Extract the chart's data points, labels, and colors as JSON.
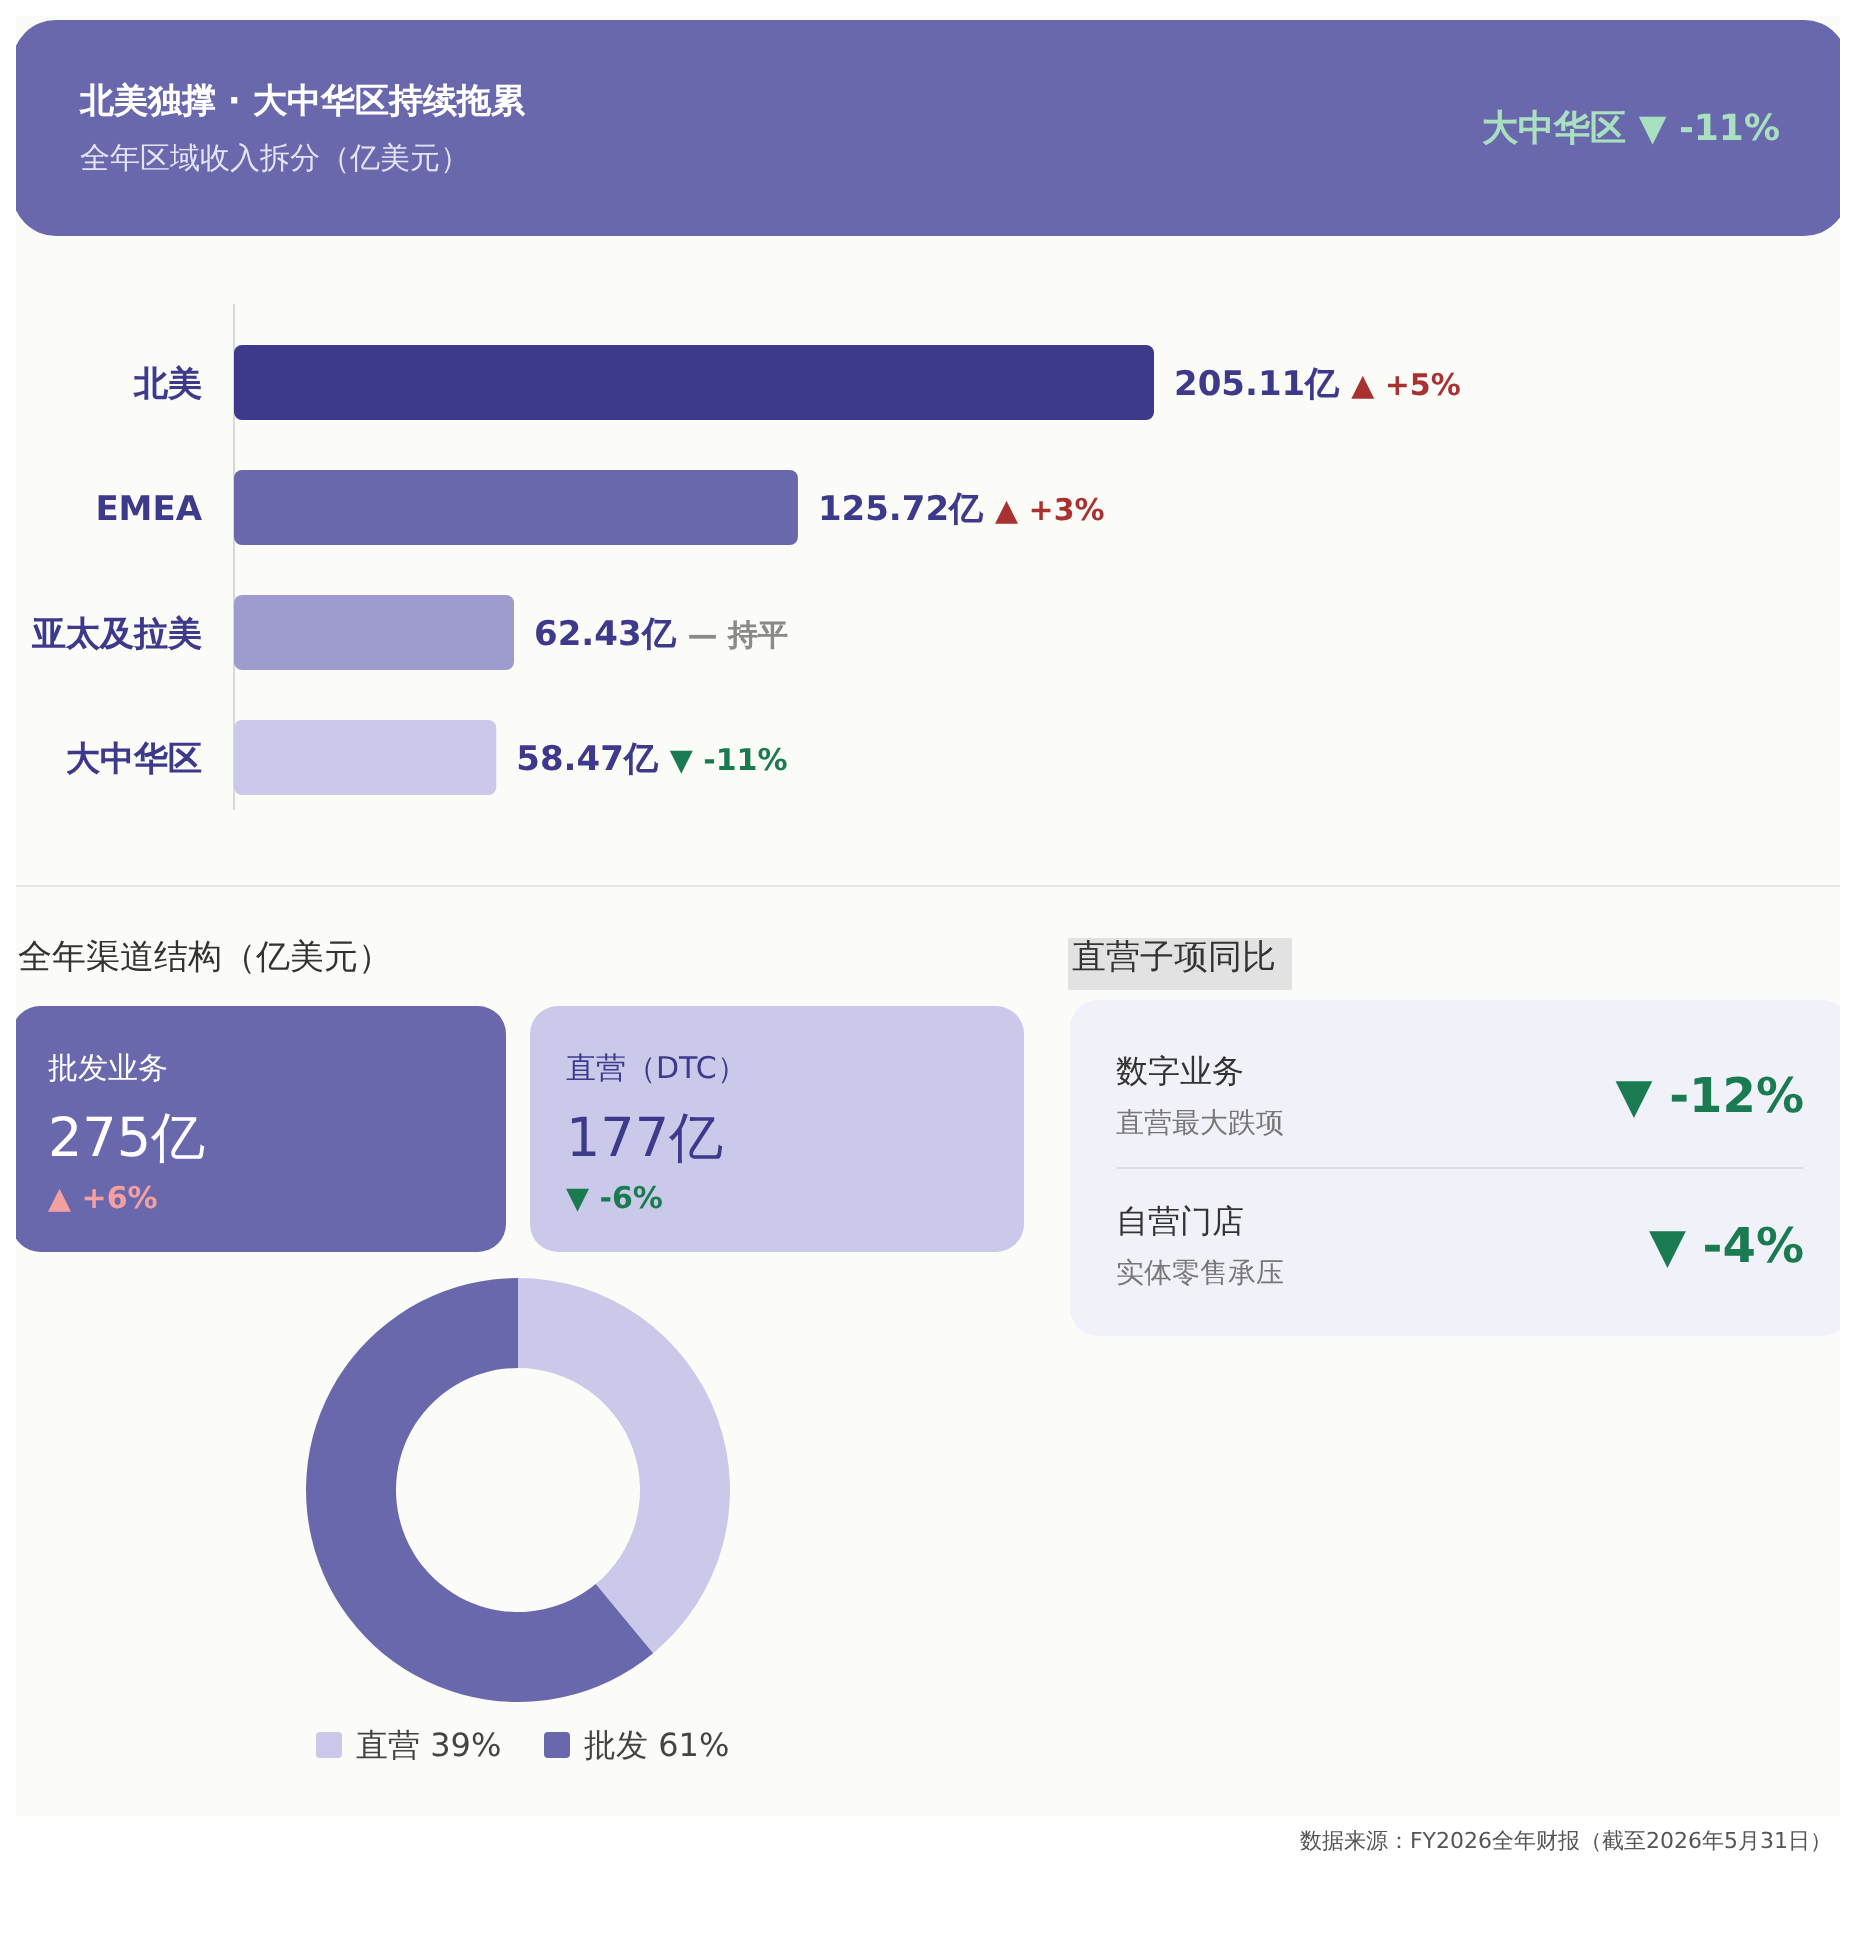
{
  "chart_data": [
    {
      "type": "bar",
      "orientation": "horizontal",
      "title": "北美独撑 · 大中华区持续拖累",
      "subtitle": "全年区域收入拆分（亿美元）",
      "categories": [
        "北美",
        "EMEA",
        "亚太及拉美",
        "大中华区"
      ],
      "values": [
        205.11,
        125.72,
        62.43,
        58.47
      ],
      "colors": [
        "#3d3a8c",
        "#6a68ad",
        "#9e9bcf",
        "#cbc9ea"
      ],
      "value_labels": [
        "205.11亿",
        "125.72亿",
        "62.43亿",
        "58.47亿"
      ],
      "annotations": [
        "大中华区 ▼ -11%",
        "▲ +5%",
        "▲ +3%",
        "— 持平",
        "▼ -11%"
      ]
    },
    {
      "type": "donut",
      "title": "全年渠道结构（亿美元）",
      "categories": [
        "直营",
        "批发"
      ],
      "values": [
        39,
        61
      ],
      "colors": [
        "#cbc9ea",
        "#6a68ad"
      ],
      "value_labels": [
        "39%",
        "61%"
      ],
      "legend": "bottom",
      "annotations": [
        "批发业务",
        "275亿",
        "▲ +6%",
        "直营（DTC）",
        "177亿",
        "▼ -6%"
      ]
    },
    {
      "type": "other",
      "title": "直营子项同比",
      "annotations": [
        "数字业务",
        "直营最大跌项",
        "▼ -12%",
        "自营门店",
        "实体零售承压",
        "▼ -4%",
        "数据来源：FY2026全年财报（截至2026年5月31日）"
      ]
    }
  ]
}
